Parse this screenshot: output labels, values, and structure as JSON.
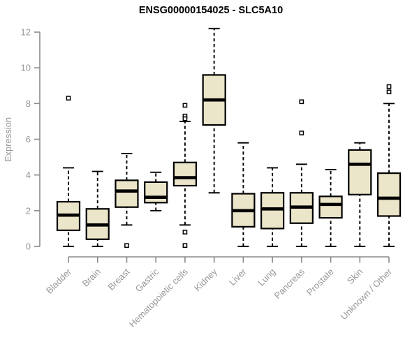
{
  "chart_data": {
    "type": "boxplot",
    "title": "ENSG00000154025 - SLC5A10",
    "ylabel": "Expression",
    "xlabel": "",
    "ylim": [
      0,
      12
    ],
    "yticks": [
      0,
      2,
      4,
      6,
      8,
      10,
      12
    ],
    "grid": false,
    "legend_position": "none",
    "categories": [
      "Bladder",
      "Brain",
      "Breast",
      "Gastric",
      "Hematopoietic cells",
      "Kidney",
      "Liver",
      "Lung",
      "Pancreas",
      "Prostate",
      "Skin",
      "Unknown / Other"
    ],
    "series": [
      {
        "name": "Bladder",
        "whisker_low": 0,
        "q1": 0.9,
        "median": 1.75,
        "q3": 2.5,
        "whisker_high": 4.4,
        "outliers": [
          8.3
        ]
      },
      {
        "name": "Brain",
        "whisker_low": 0,
        "q1": 0.4,
        "median": 1.2,
        "q3": 2.1,
        "whisker_high": 4.2,
        "outliers": []
      },
      {
        "name": "Breast",
        "whisker_low": 1.2,
        "q1": 2.2,
        "median": 3.1,
        "q3": 3.7,
        "whisker_high": 5.2,
        "outliers": [
          0.05
        ]
      },
      {
        "name": "Gastric",
        "whisker_low": 2.0,
        "q1": 2.45,
        "median": 2.75,
        "q3": 3.6,
        "whisker_high": 4.15,
        "outliers": []
      },
      {
        "name": "Hematopoietic cells",
        "whisker_low": 1.2,
        "q1": 3.4,
        "median": 3.85,
        "q3": 4.7,
        "whisker_high": 7.0,
        "outliers": [
          7.9,
          7.3,
          7.15,
          0.8,
          0.05
        ]
      },
      {
        "name": "Kidney",
        "whisker_low": 3.0,
        "q1": 6.8,
        "median": 8.2,
        "q3": 9.6,
        "whisker_high": 12.2,
        "outliers": []
      },
      {
        "name": "Liver",
        "whisker_low": 0,
        "q1": 1.1,
        "median": 2.0,
        "q3": 2.95,
        "whisker_high": 5.8,
        "outliers": []
      },
      {
        "name": "Lung",
        "whisker_low": 0,
        "q1": 1.0,
        "median": 2.1,
        "q3": 3.0,
        "whisker_high": 4.4,
        "outliers": []
      },
      {
        "name": "Pancreas",
        "whisker_low": 0,
        "q1": 1.3,
        "median": 2.2,
        "q3": 3.0,
        "whisker_high": 4.6,
        "outliers": [
          8.1,
          6.35
        ]
      },
      {
        "name": "Prostate",
        "whisker_low": 0,
        "q1": 1.6,
        "median": 2.35,
        "q3": 2.8,
        "whisker_high": 4.3,
        "outliers": []
      },
      {
        "name": "Skin",
        "whisker_low": 0,
        "q1": 2.9,
        "median": 4.6,
        "q3": 5.4,
        "whisker_high": 5.8,
        "outliers": []
      },
      {
        "name": "Unknown / Other",
        "whisker_low": 0,
        "q1": 1.7,
        "median": 2.7,
        "q3": 4.1,
        "whisker_high": 8.0,
        "outliers": [
          8.95,
          8.65
        ]
      }
    ],
    "colors": {
      "box_fill": "#ebe5c9",
      "box_border": "#000000",
      "median": "#000000",
      "whisker": "#000000",
      "outlier_fill": "#ffffff",
      "axis_line": "#8a8a8a",
      "tick_label": "#979797",
      "title": "#000000",
      "background": "#ffffff"
    }
  }
}
